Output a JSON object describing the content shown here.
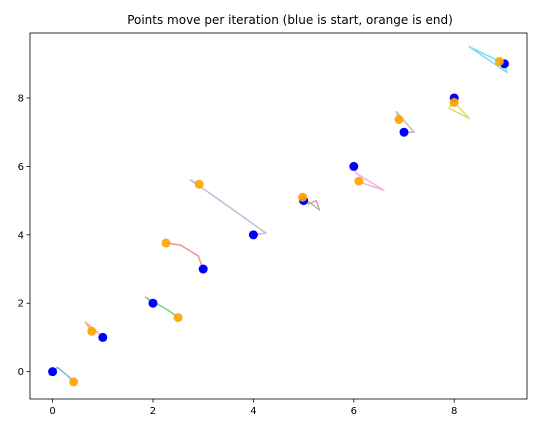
{
  "chart_data": {
    "type": "scatter",
    "title": "Points move per iteration (blue is start, orange is end)",
    "xlabel": "",
    "ylabel": "",
    "xlim": [
      -0.45,
      9.45
    ],
    "ylim": [
      -0.8,
      9.9
    ],
    "xticks": [
      0,
      2,
      4,
      6,
      8
    ],
    "yticks": [
      0,
      2,
      4,
      6,
      8
    ],
    "grid": false,
    "start_color": "#0000ff",
    "end_color": "#ffa500",
    "start_points": [
      [
        0,
        0
      ],
      [
        1,
        1
      ],
      [
        2,
        2
      ],
      [
        3,
        3
      ],
      [
        4,
        4
      ],
      [
        5,
        5
      ],
      [
        6,
        6
      ],
      [
        7,
        7
      ],
      [
        8,
        8
      ],
      [
        9,
        9
      ]
    ],
    "end_points": [
      [
        0.42,
        -0.3
      ],
      [
        0.78,
        1.18
      ],
      [
        2.5,
        1.58
      ],
      [
        2.26,
        3.76
      ],
      [
        2.92,
        5.48
      ],
      [
        4.98,
        5.1
      ],
      [
        6.1,
        5.57
      ],
      [
        6.9,
        7.37
      ],
      [
        8.0,
        7.87
      ],
      [
        8.9,
        9.07
      ]
    ],
    "paths": [
      {
        "color": "#6fa8dc",
        "points": [
          [
            0,
            0
          ],
          [
            0.1,
            0.12
          ],
          [
            0.3,
            -0.12
          ],
          [
            0.42,
            -0.3
          ]
        ]
      },
      {
        "color": "#f6a25a",
        "points": [
          [
            1,
            1
          ],
          [
            0.85,
            1.2
          ],
          [
            0.65,
            1.45
          ],
          [
            0.78,
            1.18
          ]
        ]
      },
      {
        "color": "#6cc36c",
        "points": [
          [
            2,
            2
          ],
          [
            1.85,
            2.18
          ],
          [
            2.3,
            1.8
          ],
          [
            2.5,
            1.58
          ]
        ]
      },
      {
        "color": "#e8847a",
        "points": [
          [
            3,
            3
          ],
          [
            2.9,
            3.38
          ],
          [
            2.55,
            3.7
          ],
          [
            2.26,
            3.76
          ]
        ]
      },
      {
        "color": "#c5a8dd",
        "points": [
          [
            4,
            4
          ],
          [
            4.25,
            4.05
          ],
          [
            3.1,
            5.25
          ],
          [
            2.75,
            5.6
          ],
          [
            2.92,
            5.48
          ]
        ]
      },
      {
        "color": "#bf9f94",
        "points": [
          [
            5,
            5
          ],
          [
            5.1,
            4.9
          ],
          [
            5.25,
            5.0
          ],
          [
            5.32,
            4.72
          ],
          [
            4.98,
            5.1
          ]
        ]
      },
      {
        "color": "#f0a6d8",
        "points": [
          [
            6,
            6
          ],
          [
            6.05,
            5.8
          ],
          [
            6.6,
            5.3
          ],
          [
            6.2,
            5.5
          ],
          [
            6.1,
            5.57
          ]
        ]
      },
      {
        "color": "#b0b0b0",
        "points": [
          [
            7,
            7
          ],
          [
            7.2,
            7.0
          ],
          [
            6.85,
            7.6
          ],
          [
            6.9,
            7.37
          ]
        ]
      },
      {
        "color": "#d4d455",
        "points": [
          [
            8,
            8
          ],
          [
            7.9,
            7.7
          ],
          [
            8.3,
            7.4
          ],
          [
            8.0,
            7.87
          ]
        ]
      },
      {
        "color": "#5fd8e8",
        "points": [
          [
            9,
            9
          ],
          [
            9.05,
            8.75
          ],
          [
            8.3,
            9.5
          ],
          [
            8.9,
            9.07
          ]
        ]
      }
    ]
  }
}
